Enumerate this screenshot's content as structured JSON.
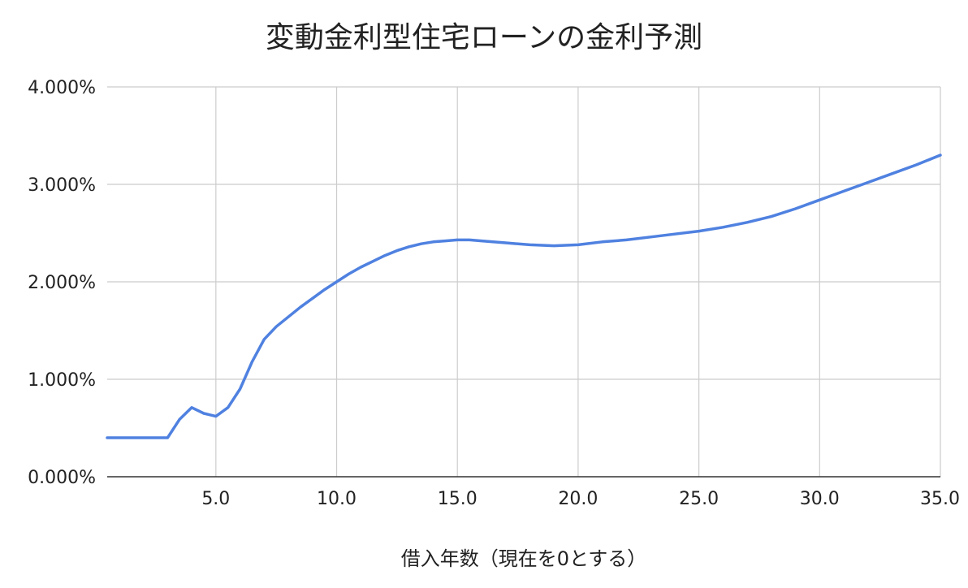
{
  "chart_data": {
    "type": "line",
    "title": "変動金利型住宅ローンの金利予測",
    "xlabel": "借入年数（現在を0とする）",
    "ylabel": "",
    "xlim": [
      0.5,
      35
    ],
    "ylim": [
      0,
      4
    ],
    "x_ticks": [
      5,
      10,
      15,
      20,
      25,
      30,
      35
    ],
    "x_tick_labels": [
      "5.0",
      "10.0",
      "15.0",
      "20.0",
      "25.0",
      "30.0",
      "35.0"
    ],
    "y_ticks": [
      0,
      1,
      2,
      3,
      4
    ],
    "y_tick_labels": [
      "0.000%",
      "1.000%",
      "2.000%",
      "3.000%",
      "4.000%"
    ],
    "grid": true,
    "legend": "none",
    "series": [
      {
        "color": "#4f81e0",
        "x": [
          0.5,
          1.0,
          1.5,
          2.0,
          2.5,
          3.0,
          3.5,
          4.0,
          4.5,
          5.0,
          5.5,
          6.0,
          6.5,
          7.0,
          7.5,
          8.0,
          8.5,
          9.0,
          9.5,
          10.0,
          10.5,
          11.0,
          11.5,
          12.0,
          12.5,
          13.0,
          13.5,
          14.0,
          14.5,
          15.0,
          15.5,
          16.0,
          17.0,
          18.0,
          19.0,
          20.0,
          21.0,
          22.0,
          23.0,
          24.0,
          25.0,
          26.0,
          27.0,
          28.0,
          29.0,
          30.0,
          31.0,
          32.0,
          33.0,
          34.0,
          35.0
        ],
        "y": [
          0.4,
          0.4,
          0.4,
          0.4,
          0.4,
          0.4,
          0.59,
          0.71,
          0.65,
          0.62,
          0.71,
          0.9,
          1.18,
          1.41,
          1.54,
          1.64,
          1.74,
          1.83,
          1.92,
          2.0,
          2.08,
          2.15,
          2.21,
          2.27,
          2.32,
          2.36,
          2.39,
          2.41,
          2.42,
          2.43,
          2.43,
          2.42,
          2.4,
          2.38,
          2.37,
          2.38,
          2.41,
          2.43,
          2.46,
          2.49,
          2.52,
          2.56,
          2.61,
          2.67,
          2.75,
          2.84,
          2.93,
          3.02,
          3.11,
          3.2,
          3.3
        ]
      }
    ]
  }
}
